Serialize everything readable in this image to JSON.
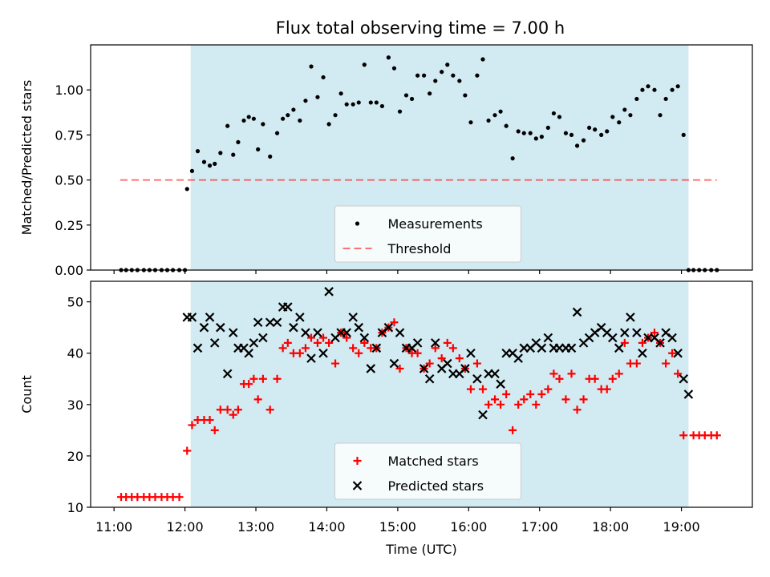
{
  "title": "Flux total observing time = 7.00 h",
  "colors": {
    "observing_span": "#add8e6",
    "measurement": "#000000",
    "threshold": "#ff0000",
    "matched": "#ff0000",
    "predicted": "#000000"
  },
  "chart_data": [
    {
      "type": "scatter",
      "ylabel": "Matched/Predicted stars",
      "ylim": [
        0,
        1.25
      ],
      "yticks": [
        0.0,
        0.25,
        0.5,
        0.75,
        1.0
      ],
      "ytick_labels": [
        "0.00",
        "0.25",
        "0.50",
        "0.75",
        "1.00"
      ],
      "xlim": [
        10.67,
        20.0
      ],
      "shaded_span": [
        12.08,
        19.1
      ],
      "legend": {
        "placement": "lower center",
        "entries": [
          "Measurements",
          "Threshold"
        ]
      },
      "threshold": {
        "name": "Threshold",
        "y": 0.5,
        "x": [
          10.67,
          19.5
        ],
        "style": "dashed"
      },
      "series": [
        {
          "name": "Measurements",
          "marker": "dot",
          "x": [
            11.1,
            11.17,
            11.25,
            11.33,
            11.42,
            11.5,
            11.58,
            11.67,
            11.75,
            11.83,
            11.92,
            12.0,
            12.03,
            12.1,
            12.18,
            12.27,
            12.35,
            12.42,
            12.5,
            12.6,
            12.68,
            12.75,
            12.83,
            12.9,
            12.97,
            13.03,
            13.1,
            13.2,
            13.3,
            13.38,
            13.45,
            13.53,
            13.62,
            13.7,
            13.78,
            13.87,
            13.95,
            14.03,
            14.12,
            14.2,
            14.28,
            14.37,
            14.45,
            14.53,
            14.62,
            14.7,
            14.78,
            14.87,
            14.95,
            15.03,
            15.12,
            15.2,
            15.28,
            15.37,
            15.45,
            15.53,
            15.62,
            15.7,
            15.78,
            15.87,
            15.95,
            16.03,
            16.12,
            16.2,
            16.28,
            16.37,
            16.45,
            16.53,
            16.62,
            16.7,
            16.78,
            16.87,
            16.95,
            17.03,
            17.12,
            17.2,
            17.28,
            17.37,
            17.45,
            17.53,
            17.62,
            17.7,
            17.78,
            17.87,
            17.95,
            18.03,
            18.12,
            18.2,
            18.28,
            18.37,
            18.45,
            18.53,
            18.62,
            18.7,
            18.78,
            18.87,
            18.95,
            19.03,
            19.1,
            19.17,
            19.25,
            19.33,
            19.42,
            19.5
          ],
          "y": [
            0,
            0,
            0,
            0,
            0,
            0,
            0,
            0,
            0,
            0,
            0,
            0,
            0.45,
            0.55,
            0.66,
            0.6,
            0.58,
            0.59,
            0.65,
            0.8,
            0.64,
            0.71,
            0.83,
            0.85,
            0.84,
            0.67,
            0.81,
            0.63,
            0.76,
            0.84,
            0.86,
            0.89,
            0.83,
            0.94,
            1.13,
            0.96,
            1.07,
            0.81,
            0.86,
            0.98,
            0.92,
            0.92,
            0.93,
            1.14,
            0.93,
            0.93,
            0.91,
            1.18,
            1.12,
            0.88,
            0.97,
            0.95,
            1.08,
            1.08,
            0.98,
            1.05,
            1.1,
            1.14,
            1.08,
            1.05,
            0.97,
            0.82,
            1.08,
            1.17,
            0.83,
            0.86,
            0.88,
            0.8,
            0.62,
            0.77,
            0.76,
            0.76,
            0.73,
            0.74,
            0.79,
            0.87,
            0.85,
            0.76,
            0.75,
            0.69,
            0.72,
            0.79,
            0.78,
            0.75,
            0.77,
            0.85,
            0.82,
            0.89,
            0.86,
            0.95,
            1.0,
            1.02,
            1.0,
            0.86,
            0.95,
            1.0,
            1.02,
            0.75,
            0,
            0,
            0,
            0,
            0,
            0
          ]
        }
      ]
    },
    {
      "type": "scatter",
      "ylabel": "Count",
      "xlabel": "Time (UTC)",
      "ylim": [
        10,
        54
      ],
      "yticks": [
        10,
        20,
        30,
        40,
        50
      ],
      "ytick_labels": [
        "10",
        "20",
        "30",
        "40",
        "50"
      ],
      "xlim": [
        10.67,
        20.0
      ],
      "xticks": [
        11,
        12,
        13,
        14,
        15,
        16,
        17,
        18,
        19
      ],
      "xtick_labels": [
        "11:00",
        "12:00",
        "13:00",
        "14:00",
        "15:00",
        "16:00",
        "17:00",
        "18:00",
        "19:00"
      ],
      "shaded_span": [
        12.08,
        19.1
      ],
      "legend": {
        "placement": "lower center",
        "entries": [
          "Matched stars",
          "Predicted stars"
        ]
      },
      "series": [
        {
          "name": "Matched stars",
          "marker": "plus",
          "x": [
            11.1,
            11.17,
            11.25,
            11.33,
            11.42,
            11.5,
            11.58,
            11.67,
            11.75,
            11.83,
            11.92,
            12.03,
            12.1,
            12.18,
            12.27,
            12.35,
            12.42,
            12.5,
            12.6,
            12.68,
            12.75,
            12.83,
            12.9,
            12.97,
            13.03,
            13.1,
            13.2,
            13.3,
            13.38,
            13.45,
            13.53,
            13.62,
            13.7,
            13.78,
            13.87,
            13.95,
            14.03,
            14.12,
            14.2,
            14.28,
            14.37,
            14.45,
            14.53,
            14.62,
            14.7,
            14.78,
            14.87,
            14.95,
            15.03,
            15.12,
            15.2,
            15.28,
            15.37,
            15.45,
            15.53,
            15.62,
            15.7,
            15.78,
            15.87,
            15.95,
            16.03,
            16.12,
            16.2,
            16.28,
            16.37,
            16.45,
            16.53,
            16.62,
            16.7,
            16.78,
            16.87,
            16.95,
            17.03,
            17.12,
            17.2,
            17.28,
            17.37,
            17.45,
            17.53,
            17.62,
            17.7,
            17.78,
            17.87,
            17.95,
            18.03,
            18.12,
            18.2,
            18.28,
            18.37,
            18.45,
            18.53,
            18.62,
            18.7,
            18.78,
            18.87,
            18.95,
            19.03,
            19.17,
            19.25,
            19.33,
            19.42,
            19.5
          ],
          "y": [
            12,
            12,
            12,
            12,
            12,
            12,
            12,
            12,
            12,
            12,
            12,
            21,
            26,
            27,
            27,
            27,
            25,
            29,
            29,
            28,
            29,
            34,
            34,
            35,
            31,
            35,
            29,
            35,
            41,
            42,
            40,
            40,
            41,
            43,
            42,
            43,
            42,
            38,
            44,
            43,
            41,
            40,
            42,
            41,
            41,
            44,
            45,
            46,
            37,
            41,
            40,
            40,
            37,
            38,
            41,
            39,
            42,
            41,
            39,
            37,
            33,
            38,
            33,
            30,
            31,
            30,
            32,
            25,
            30,
            31,
            32,
            30,
            32,
            33,
            36,
            35,
            31,
            36,
            29,
            31,
            35,
            35,
            33,
            33,
            35,
            36,
            42,
            38,
            38,
            42,
            43,
            44,
            42,
            38,
            40,
            36,
            24,
            24,
            24,
            24,
            24,
            24
          ]
        },
        {
          "name": "Predicted stars",
          "marker": "x",
          "x": [
            12.03,
            12.1,
            12.18,
            12.27,
            12.35,
            12.42,
            12.5,
            12.6,
            12.68,
            12.75,
            12.83,
            12.9,
            12.97,
            13.03,
            13.1,
            13.2,
            13.3,
            13.38,
            13.45,
            13.53,
            13.62,
            13.7,
            13.78,
            13.87,
            13.95,
            14.03,
            14.12,
            14.2,
            14.28,
            14.37,
            14.45,
            14.53,
            14.62,
            14.7,
            14.78,
            14.87,
            14.95,
            15.03,
            15.12,
            15.2,
            15.28,
            15.37,
            15.45,
            15.53,
            15.62,
            15.7,
            15.78,
            15.87,
            15.95,
            16.03,
            16.12,
            16.2,
            16.28,
            16.37,
            16.45,
            16.53,
            16.62,
            16.7,
            16.78,
            16.87,
            16.95,
            17.03,
            17.12,
            17.2,
            17.28,
            17.37,
            17.45,
            17.53,
            17.62,
            17.7,
            17.78,
            17.87,
            17.95,
            18.03,
            18.12,
            18.2,
            18.28,
            18.37,
            18.45,
            18.53,
            18.62,
            18.7,
            18.78,
            18.87,
            18.95,
            19.03,
            19.1
          ],
          "y": [
            47,
            47,
            41,
            45,
            47,
            42,
            45,
            36,
            44,
            41,
            41,
            40,
            42,
            46,
            43,
            46,
            46,
            49,
            49,
            45,
            47,
            44,
            39,
            44,
            40,
            52,
            43,
            44,
            44,
            47,
            45,
            43,
            37,
            41,
            44,
            45,
            38,
            44,
            41,
            41,
            42,
            37,
            35,
            42,
            37,
            38,
            36,
            36,
            37,
            40,
            35,
            28,
            36,
            36,
            34,
            40,
            40,
            39,
            41,
            41,
            42,
            41,
            43,
            41,
            41,
            41,
            41,
            48,
            42,
            43,
            44,
            45,
            44,
            43,
            41,
            44,
            47,
            44,
            40,
            43,
            43,
            42,
            44,
            43,
            40,
            35,
            32
          ]
        }
      ]
    }
  ]
}
